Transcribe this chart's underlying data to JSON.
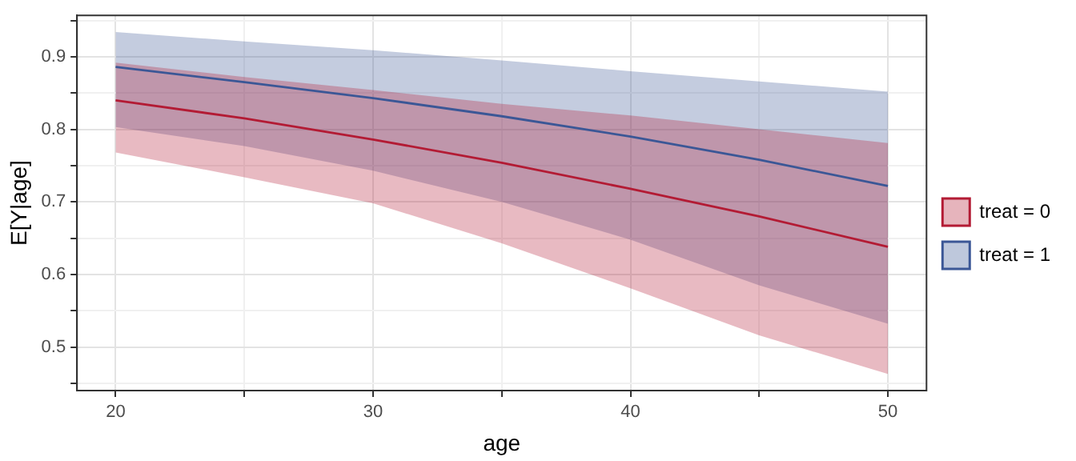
{
  "chart_data": {
    "type": "line",
    "xlabel": "age",
    "ylabel": "E[Y|age]",
    "x": [
      20,
      25,
      30,
      35,
      40,
      45,
      50
    ],
    "series": [
      {
        "name": "treat = 0",
        "color": "#b31b34",
        "values": [
          0.84,
          0.815,
          0.786,
          0.754,
          0.718,
          0.68,
          0.638
        ],
        "lower": [
          0.768,
          0.734,
          0.698,
          0.643,
          0.581,
          0.516,
          0.463
        ],
        "upper": [
          0.892,
          0.872,
          0.854,
          0.835,
          0.819,
          0.8,
          0.781
        ]
      },
      {
        "name": "treat = 1",
        "color": "#3b5796",
        "values": [
          0.886,
          0.865,
          0.843,
          0.818,
          0.79,
          0.758,
          0.722
        ],
        "lower": [
          0.803,
          0.777,
          0.743,
          0.7,
          0.648,
          0.585,
          0.532
        ],
        "upper": [
          0.934,
          0.921,
          0.909,
          0.895,
          0.88,
          0.866,
          0.852
        ]
      }
    ],
    "xlim": [
      18.5,
      51.5
    ],
    "xticks": [
      20,
      {
        "value": 25,
        "label": null
      },
      30,
      {
        "value": 35,
        "label": null
      },
      40,
      {
        "value": 45,
        "label": null
      },
      50
    ],
    "ylim": [
      0.44,
      0.957
    ],
    "yticks": [
      {
        "value": 0.45,
        "label": null
      },
      0.5,
      {
        "value": 0.55,
        "label": null
      },
      0.6,
      {
        "value": 0.65,
        "label": null
      },
      0.7,
      {
        "value": 0.75,
        "label": null
      },
      0.8,
      {
        "value": 0.85,
        "label": null
      },
      0.9,
      {
        "value": 0.95,
        "label": null
      }
    ],
    "grid": true,
    "legend": "right",
    "marker": "none",
    "line_style": "solid"
  }
}
